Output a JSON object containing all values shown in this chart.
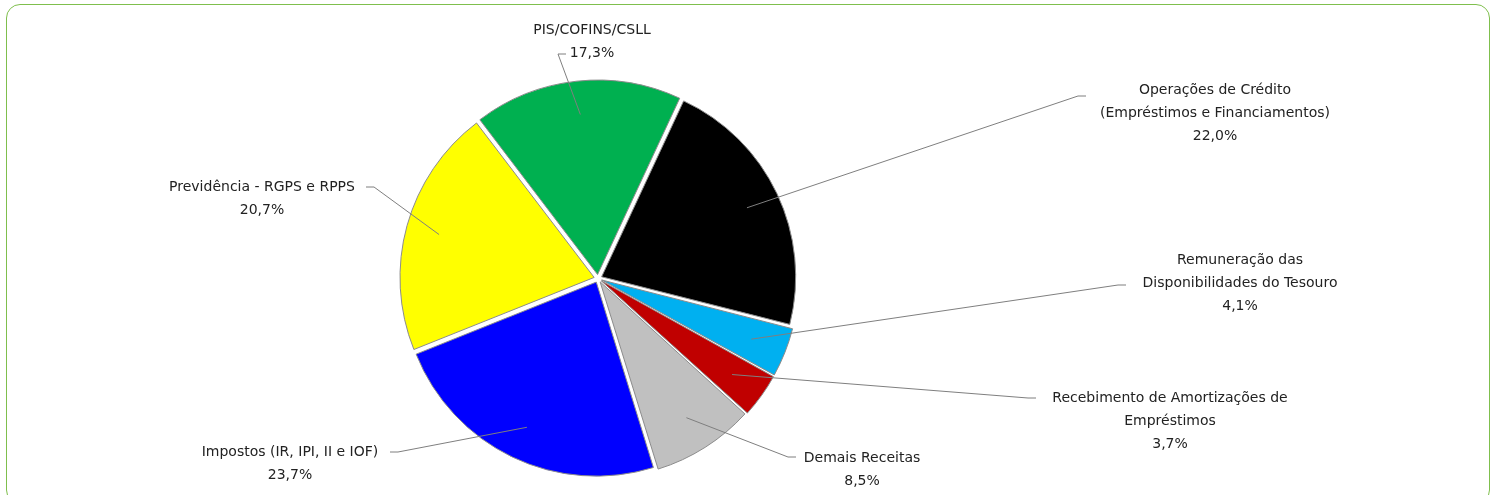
{
  "chart_data": {
    "type": "pie",
    "categories": [
      "Operações de Crédito (Empréstimos e Financiamentos)",
      "Remuneração das Disponibilidades do Tesouro",
      "Recebimento de Amortizações de Empréstimos",
      "Demais Receitas",
      "Impostos (IR, IPI, II e IOF)",
      "Previdência - RGPS e RPPS",
      "PIS/COFINS/CSLL"
    ],
    "values": [
      22.0,
      4.1,
      3.7,
      8.5,
      23.7,
      20.7,
      17.3
    ],
    "value_labels": [
      "22,0%",
      "4,1%",
      "3,7%",
      "8,5%",
      "23,7%",
      "20,7%",
      "17,3%"
    ],
    "colors": [
      "#000000",
      "#00b0f0",
      "#c00000",
      "#c0c0c0",
      "#0000ff",
      "#ffff00",
      "#00b050"
    ]
  }
}
